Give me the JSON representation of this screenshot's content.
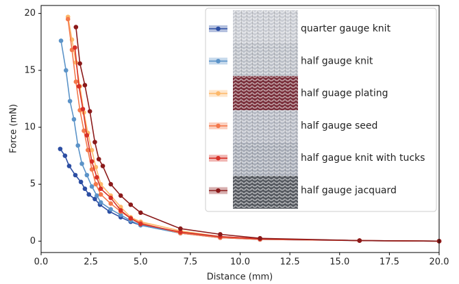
{
  "chart_data": {
    "type": "line",
    "x_label": "Distance (mm)",
    "y_label": "Force (mN)",
    "xlim": [
      0,
      20
    ],
    "ylim": [
      -1,
      20.7
    ],
    "xticks": [
      {
        "value": 0,
        "label": "0.0"
      },
      {
        "value": 2.5,
        "label": "2.5"
      },
      {
        "value": 5,
        "label": "5.0"
      },
      {
        "value": 7.5,
        "label": "7.5"
      },
      {
        "value": 10,
        "label": "10.0"
      },
      {
        "value": 12.5,
        "label": "12.5"
      },
      {
        "value": 15,
        "label": "15.0"
      },
      {
        "value": 17.5,
        "label": "17.5"
      },
      {
        "value": 20,
        "label": "20.0"
      }
    ],
    "yticks": [
      0,
      5,
      10,
      15,
      20
    ],
    "grid": false,
    "legend": "upper right",
    "series": [
      {
        "name": "quarter gauge knit",
        "color": "#2c4ea3",
        "x": [
          0.96,
          1.2,
          1.41,
          1.72,
          2.0,
          2.2,
          2.4,
          2.7,
          2.96,
          3.44,
          4.0,
          4.5,
          5.0,
          7,
          9,
          11,
          16,
          20
        ],
        "values": [
          8.1,
          7.5,
          6.6,
          5.8,
          5.2,
          4.6,
          4.1,
          3.7,
          3.2,
          2.6,
          2.1,
          1.7,
          1.4,
          0.7,
          0.3,
          0.15,
          0.05,
          0
        ]
      },
      {
        "name": "half gauge knit",
        "color": "#5b93c8",
        "x": [
          1.0,
          1.25,
          1.45,
          1.65,
          1.85,
          2.05,
          2.3,
          2.55,
          2.8,
          3.0,
          3.5,
          4.0,
          4.5,
          5.0,
          7,
          9,
          11,
          16,
          20
        ],
        "values": [
          17.6,
          15.0,
          12.3,
          10.7,
          8.4,
          6.8,
          5.8,
          4.8,
          4.0,
          3.4,
          2.8,
          2.3,
          1.8,
          1.4,
          0.7,
          0.35,
          0.15,
          0.05,
          0
        ]
      },
      {
        "name": "half guage plating",
        "color": "#fdb86a",
        "x": [
          1.35,
          1.55,
          1.75,
          1.95,
          2.15,
          2.35,
          2.55,
          2.75,
          3.0,
          3.5,
          4.0,
          4.5,
          5.0,
          7,
          9,
          11,
          16,
          20
        ],
        "values": [
          19.7,
          17.7,
          15.7,
          13.6,
          11.3,
          9.5,
          8.0,
          6.5,
          5.0,
          4.0,
          3.0,
          2.1,
          1.7,
          0.9,
          0.4,
          0.2,
          0.05,
          0
        ]
      },
      {
        "name": "half gauge seed",
        "color": "#f4784b",
        "x": [
          1.35,
          1.55,
          1.75,
          1.95,
          2.15,
          2.35,
          2.55,
          2.75,
          3.0,
          3.5,
          4.0,
          4.5,
          5.0,
          7,
          9,
          11,
          16,
          20
        ],
        "values": [
          19.5,
          16.8,
          14.0,
          11.5,
          9.7,
          8.0,
          6.3,
          5.0,
          4.1,
          3.3,
          2.6,
          2.0,
          1.6,
          0.7,
          0.3,
          0.15,
          0.05,
          0
        ]
      },
      {
        "name": "half gague knit with tucks",
        "color": "#d73027",
        "x": [
          1.7,
          1.9,
          2.1,
          2.3,
          2.55,
          2.8,
          3.0,
          3.5,
          4.0,
          4.5,
          5.0,
          7,
          9,
          11,
          16,
          20
        ],
        "values": [
          17.0,
          13.6,
          11.6,
          9.3,
          7.0,
          5.6,
          4.6,
          3.8,
          2.7,
          2.0,
          1.5,
          0.8,
          0.4,
          0.2,
          0.05,
          0
        ]
      },
      {
        "name": "half gauge jacquard",
        "color": "#8b1a1a",
        "x": [
          1.75,
          1.95,
          2.2,
          2.45,
          2.7,
          2.9,
          3.1,
          3.5,
          4.0,
          4.5,
          5.0,
          7,
          9,
          11,
          16,
          20
        ],
        "values": [
          18.8,
          15.6,
          13.7,
          11.4,
          8.7,
          7.2,
          6.6,
          5.0,
          4.0,
          3.2,
          2.5,
          1.1,
          0.6,
          0.25,
          0.05,
          0
        ]
      }
    ]
  }
}
